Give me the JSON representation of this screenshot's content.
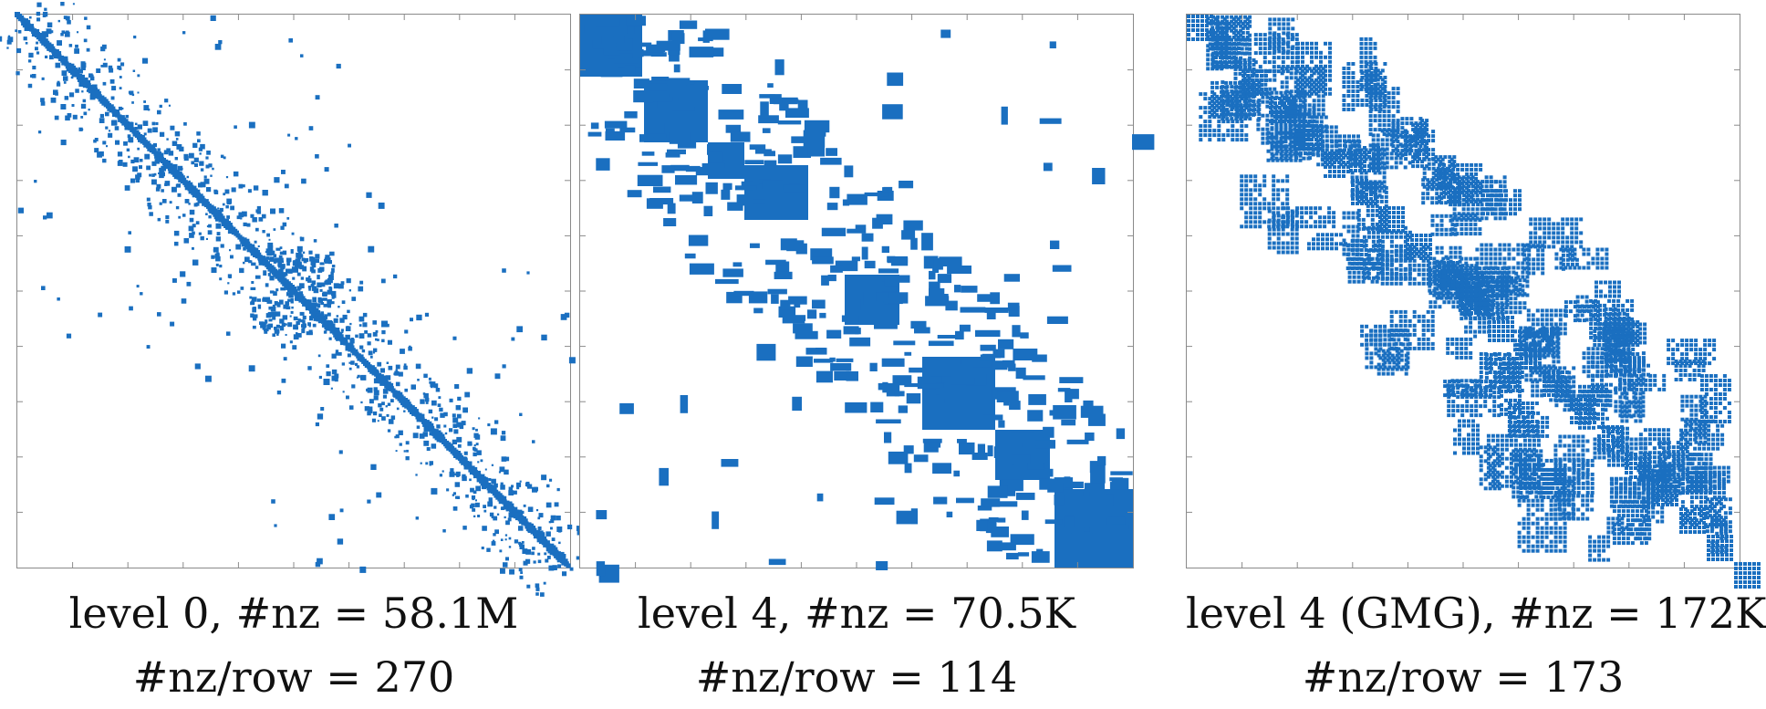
{
  "chart_data": [
    {
      "type": "heatmap",
      "kind": "sparsity pattern",
      "caption_line1": "level 0,  #nz = 58.1M",
      "caption_line2": "#nz/row = 270",
      "nnz": "58.1M",
      "nnz_per_row": 270,
      "color": "#1a6fc0",
      "grid": false,
      "axis_tick_labels": "none",
      "pattern": "thin banded diagonal with scattered off-diagonal blocks"
    },
    {
      "type": "heatmap",
      "kind": "sparsity pattern",
      "caption_line1": "level 4,  #nz = 70.5K",
      "caption_line2": "#nz/row = 114",
      "nnz": "70.5K",
      "nnz_per_row": 114,
      "color": "#1a6fc0",
      "grid": false,
      "axis_tick_labels": "none",
      "pattern": "dense diagonal blocks with blocky off-diagonal fill"
    },
    {
      "type": "heatmap",
      "kind": "sparsity pattern",
      "caption_line1": "level 4 (GMG),  #nz = 172K",
      "caption_line2": "#nz/row = 173",
      "nnz": "172K",
      "nnz_per_row": 173,
      "color": "#1a6fc0",
      "grid": false,
      "axis_tick_labels": "none",
      "pattern": "wide band of dense dotted blocks along the diagonal"
    }
  ]
}
